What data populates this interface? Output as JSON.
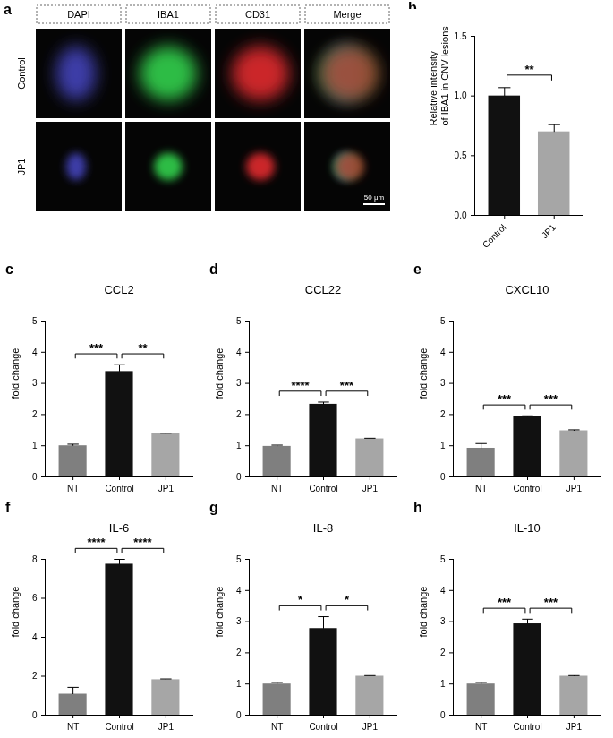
{
  "panel_a": {
    "panel_label": "a",
    "columns": [
      "DAPI",
      "IBA1",
      "CD31",
      "Merge"
    ],
    "rows": [
      "Control",
      "JP1"
    ],
    "scale_bar": "50 μm"
  },
  "chart_data": [
    {
      "type": "bar",
      "panel_label": "b",
      "ylabel": [
        "Relative intensity",
        "of IBA1 in CNV lesions"
      ],
      "categories": [
        "Control",
        "JP1"
      ],
      "values": [
        1.0,
        0.7
      ],
      "errors": [
        0.07,
        0.06
      ],
      "colors": [
        "#111111",
        "#a6a6a6"
      ],
      "ylim": [
        0,
        1.5
      ],
      "yticks": [
        {
          "value": 0,
          "label": "0.0"
        },
        {
          "value": 0.5,
          "label": "0.5"
        },
        {
          "value": 1,
          "label": "1.0"
        },
        {
          "value": 1.5,
          "label": "1.5"
        }
      ],
      "annotations": [
        {
          "from": "Control",
          "to": "JP1",
          "text": "**"
        }
      ]
    },
    {
      "type": "bar",
      "panel_label": "c",
      "title": "CCL2",
      "ylabel": [
        "fold change"
      ],
      "categories": [
        "NT",
        "Control",
        "JP1"
      ],
      "values": [
        1.0,
        3.38,
        1.38
      ],
      "errors": [
        0.05,
        0.22,
        0.02
      ],
      "colors": [
        "#7f7f7f",
        "#111111",
        "#a6a6a6"
      ],
      "ylim": [
        0,
        5
      ],
      "yticks": [
        0,
        1,
        2,
        3,
        4,
        5
      ],
      "annotations": [
        {
          "from": "NT",
          "to": "Control",
          "text": "***"
        },
        {
          "from": "Control",
          "to": "JP1",
          "text": "**"
        }
      ]
    },
    {
      "type": "bar",
      "panel_label": "d",
      "title": "CCL22",
      "ylabel": [
        "fold change"
      ],
      "categories": [
        "NT",
        "Control",
        "JP1"
      ],
      "values": [
        0.98,
        2.33,
        1.22
      ],
      "errors": [
        0.04,
        0.07,
        0.02
      ],
      "colors": [
        "#7f7f7f",
        "#111111",
        "#a6a6a6"
      ],
      "ylim": [
        0,
        5
      ],
      "yticks": [
        0,
        1,
        2,
        3,
        4,
        5
      ],
      "annotations": [
        {
          "from": "NT",
          "to": "Control",
          "text": "****"
        },
        {
          "from": "Control",
          "to": "JP1",
          "text": "***"
        }
      ]
    },
    {
      "type": "bar",
      "panel_label": "e",
      "title": "CXCL10",
      "ylabel": [
        "fold change"
      ],
      "categories": [
        "NT",
        "Control",
        "JP1"
      ],
      "values": [
        0.92,
        1.93,
        1.48
      ],
      "errors": [
        0.15,
        0.03,
        0.03
      ],
      "colors": [
        "#7f7f7f",
        "#111111",
        "#a6a6a6"
      ],
      "ylim": [
        0,
        5
      ],
      "yticks": [
        0,
        1,
        2,
        3,
        4,
        5
      ],
      "annotations": [
        {
          "from": "NT",
          "to": "Control",
          "text": "***"
        },
        {
          "from": "Control",
          "to": "JP1",
          "text": "***"
        }
      ]
    },
    {
      "type": "bar",
      "panel_label": "f",
      "title": "IL-6",
      "ylabel": [
        "fold change"
      ],
      "categories": [
        "NT",
        "Control",
        "JP1"
      ],
      "values": [
        1.08,
        7.75,
        1.82
      ],
      "errors": [
        0.35,
        0.25,
        0.04
      ],
      "colors": [
        "#7f7f7f",
        "#111111",
        "#a6a6a6"
      ],
      "ylim": [
        0,
        8
      ],
      "yticks": [
        0,
        2,
        4,
        6,
        8
      ],
      "annotations": [
        {
          "from": "NT",
          "to": "Control",
          "text": "****"
        },
        {
          "from": "Control",
          "to": "JP1",
          "text": "****"
        }
      ]
    },
    {
      "type": "bar",
      "panel_label": "g",
      "title": "IL-8",
      "ylabel": [
        "fold change"
      ],
      "categories": [
        "NT",
        "Control",
        "JP1"
      ],
      "values": [
        1.0,
        2.78,
        1.25
      ],
      "errors": [
        0.05,
        0.38,
        0.02
      ],
      "colors": [
        "#7f7f7f",
        "#111111",
        "#a6a6a6"
      ],
      "ylim": [
        0,
        5
      ],
      "yticks": [
        0,
        1,
        2,
        3,
        4,
        5
      ],
      "annotations": [
        {
          "from": "NT",
          "to": "Control",
          "text": "*"
        },
        {
          "from": "Control",
          "to": "JP1",
          "text": "*"
        }
      ]
    },
    {
      "type": "bar",
      "panel_label": "h",
      "title": "IL-10",
      "ylabel": [
        "fold change"
      ],
      "categories": [
        "NT",
        "Control",
        "JP1"
      ],
      "values": [
        1.0,
        2.93,
        1.25
      ],
      "errors": [
        0.05,
        0.15,
        0.02
      ],
      "colors": [
        "#7f7f7f",
        "#111111",
        "#a6a6a6"
      ],
      "ylim": [
        0,
        5
      ],
      "yticks": [
        0,
        1,
        2,
        3,
        4,
        5
      ],
      "annotations": [
        {
          "from": "NT",
          "to": "Control",
          "text": "***"
        },
        {
          "from": "Control",
          "to": "JP1",
          "text": "***"
        }
      ]
    }
  ]
}
